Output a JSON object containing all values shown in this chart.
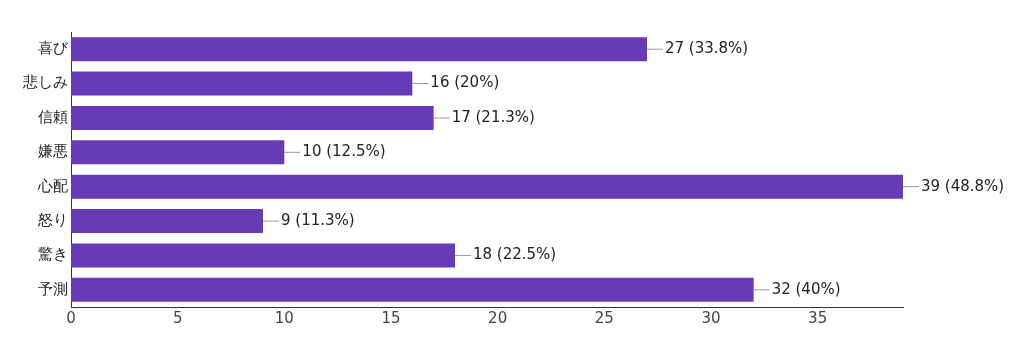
{
  "chart_data": {
    "type": "bar",
    "orientation": "horizontal",
    "categories": [
      "喜び",
      "悲しみ",
      "信頼",
      "嫌悪",
      "心配",
      "怒り",
      "驚き",
      "予測"
    ],
    "values": [
      27,
      16,
      17,
      10,
      39,
      9,
      18,
      32
    ],
    "color": "#673ab7",
    "value_labels": [
      "27 (33.8%)",
      "16 (20%)",
      "17 (21.3%)",
      "10 (12.5%)",
      "39 (48.8%)",
      "9 (11.3%)",
      "18 (22.5%)",
      "32 (40%)"
    ],
    "xlim": [
      0,
      39
    ],
    "xticks": [
      0,
      5,
      10,
      15,
      20,
      25,
      30,
      35
    ],
    "grid": false,
    "legend": false
  }
}
